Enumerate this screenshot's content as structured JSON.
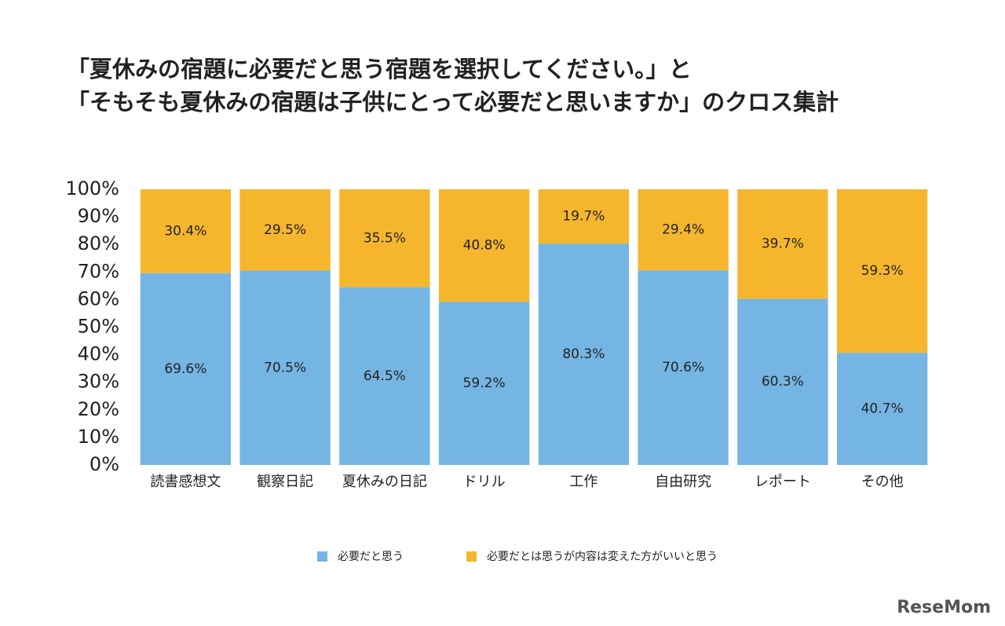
{
  "chart_data": {
    "type": "stacked_bar",
    "title": [
      "「夏休みの宿題に必要だと思う宿題を選択してください。」と",
      "「そもそも夏休みの宿題は子供にとって必要だと思いますか」のクロス集計"
    ],
    "categories": [
      "読書感想文",
      "観察日記",
      "夏休みの日記",
      "ドリル",
      "工作",
      "自由研究",
      "レポート",
      "その他"
    ],
    "series": [
      {
        "name": "必要だと思う",
        "color": "#75b5e3",
        "values": [
          69.6,
          70.5,
          64.5,
          59.2,
          80.3,
          70.6,
          60.3,
          40.7
        ],
        "value_labels": [
          "69.6%",
          "70.5%",
          "64.5%",
          "59.2%",
          "80.3%",
          "70.6%",
          "60.3%",
          "40.7%"
        ]
      },
      {
        "name": "必要だとは思うが内容は変えた方がいいと思う",
        "color": "#f5b62e",
        "values": [
          30.4,
          29.5,
          35.5,
          40.8,
          19.7,
          29.4,
          39.7,
          59.3
        ],
        "value_labels": [
          "30.4%",
          "29.5%",
          "35.5%",
          "40.8%",
          "19.7%",
          "29.4%",
          "39.7%",
          "59.3%"
        ]
      }
    ],
    "ylim": [
      0,
      100
    ],
    "yticks": [
      {
        "value": 0,
        "label": "0%"
      },
      {
        "value": 10,
        "label": "10%"
      },
      {
        "value": 20,
        "label": "20%"
      },
      {
        "value": 30,
        "label": "30%"
      },
      {
        "value": 40,
        "label": "40%"
      },
      {
        "value": 50,
        "label": "50%"
      },
      {
        "value": 60,
        "label": "60%"
      },
      {
        "value": 70,
        "label": "70%"
      },
      {
        "value": 80,
        "label": "80%"
      },
      {
        "value": 90,
        "label": "90%"
      },
      {
        "value": 100,
        "label": "100%"
      }
    ],
    "grid": false,
    "legend": "bottom",
    "watermark": "ReseMom"
  }
}
